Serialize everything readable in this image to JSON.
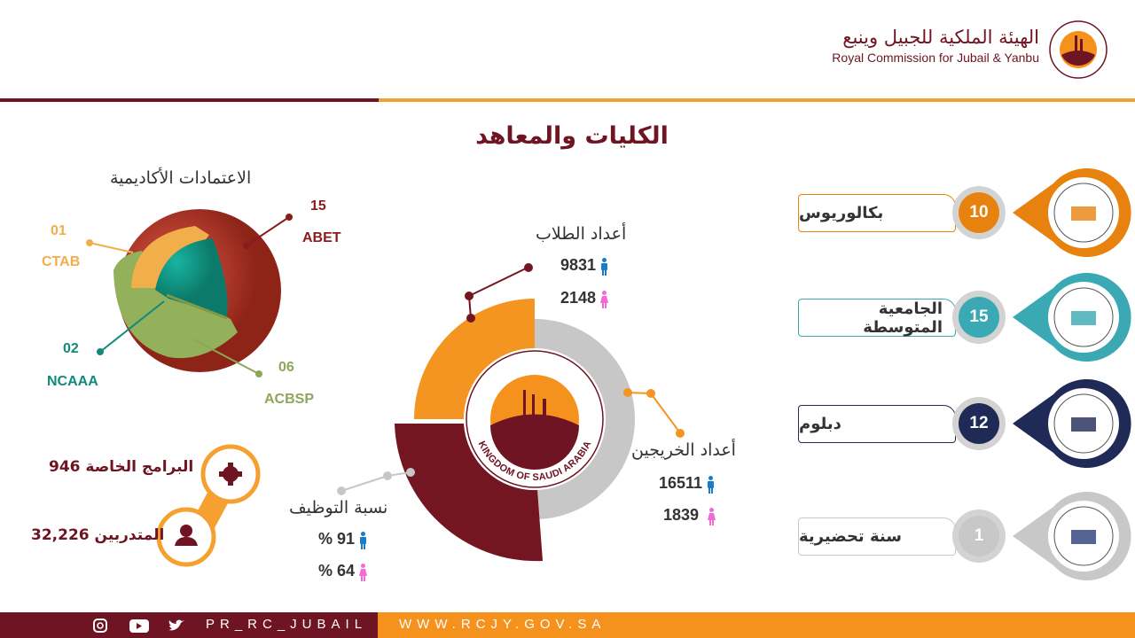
{
  "header": {
    "org_ar": "الهيئة الملكية للجبيل وينبع",
    "org_en": "Royal Commission for Jubail & Yanbu",
    "logo_text": "KINGDOM OF SAUDI ARABIA"
  },
  "title": "الكليات والمعاهد",
  "accreditations": {
    "title": "الاعتمادات الأكاديمية",
    "items": [
      {
        "count": "15",
        "name": "ABET",
        "color": "#8b1c1c"
      },
      {
        "count": "01",
        "name": "CTAB",
        "color": "#f2ae4a"
      },
      {
        "count": "02",
        "name": "NCAAA",
        "color": "#12897a"
      },
      {
        "count": "06",
        "name": "ACBSP",
        "color": "#8fa65a"
      }
    ]
  },
  "programs": {
    "special_programs": "البرامج الخاصة 946",
    "trainees": "المتدربين 32,226",
    "icons": [
      "gear-icon",
      "user-icon"
    ]
  },
  "stats": {
    "students": {
      "label": "أعداد الطلاب",
      "male": "9831",
      "female": "2148"
    },
    "graduates": {
      "label": "أعداد الخريجين",
      "male": "16511",
      "female": "1839"
    },
    "employment": {
      "label": "نسبة التوظيف",
      "male": "% 91",
      "female": "% 64"
    },
    "center_logo_text": "KINGDOM OF SAUDI ARABIA"
  },
  "colleges": [
    {
      "count": "10",
      "label": "بكالوريوس",
      "color": "#e8820f",
      "logo": "Jubail University College"
    },
    {
      "count": "15",
      "label": "الجامعية المتوسطة",
      "color": "#3aa9b3",
      "logo": "Jubail Industrial College"
    },
    {
      "count": "12",
      "label": "دبلوم",
      "color": "#1f2b56",
      "logo": "Jubail Technical Institute"
    },
    {
      "count": "1",
      "label": "سنة تحضيرية",
      "color": "#c8c8c8",
      "logo": "English Language Institute"
    }
  ],
  "footer": {
    "handle": "PR_RC_JUBAIL",
    "website": "WWW.RCJY.GOV.SA",
    "social_icons": [
      "instagram-icon",
      "youtube-icon",
      "twitter-icon"
    ]
  },
  "colors": {
    "maroon": "#6e1423",
    "orange": "#f5921e",
    "male": "#1a7cc4",
    "female": "#f06cd3"
  }
}
